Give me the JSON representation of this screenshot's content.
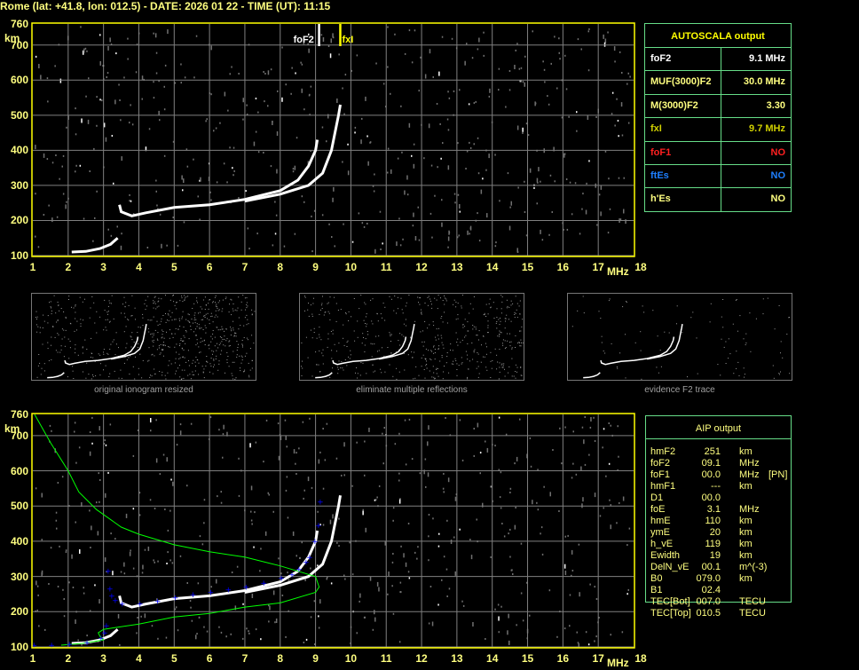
{
  "header": {
    "title": "Rome (lat: +41.8, lon: 012.5) - DATE: 2026 01 22 - TIME (UT): 11:15"
  },
  "colors": {
    "frame": "#ffff00",
    "grid": "#808080",
    "trace": "#ffffff",
    "profile": "#00ff00",
    "aip_points": "#0000ff",
    "table_border": "#66dd88",
    "fof1": "#ff2020",
    "ftes": "#1e7fff",
    "fxi": "#d0d000"
  },
  "autoscala": {
    "title": "AUTOSCALA output",
    "rows": [
      {
        "label": "foF2",
        "value": "9.1 MHz",
        "color": "#ffffff"
      },
      {
        "label": "MUF(3000)F2",
        "value": "30.0 MHz",
        "color": "#ffff80"
      },
      {
        "label": "M(3000)F2",
        "value": "3.30",
        "color": "#ffff80"
      },
      {
        "label": "fxI",
        "value": "9.7 MHz",
        "color": "#d0d000"
      },
      {
        "label": "foF1",
        "value": "NO",
        "color": "#ff2020"
      },
      {
        "label": "ftEs",
        "value": "NO",
        "color": "#1e7fff"
      },
      {
        "label": "h'Es",
        "value": "NO",
        "color": "#ffff80"
      }
    ]
  },
  "aip": {
    "title": "AIP output",
    "rows": [
      {
        "name": "hmF2",
        "value": "251",
        "unit": "km",
        "extra": ""
      },
      {
        "name": "foF2",
        "value": "09.1",
        "unit": "MHz",
        "extra": ""
      },
      {
        "name": "foF1",
        "value": "00.0",
        "unit": "MHz",
        "extra": "[PN]"
      },
      {
        "name": "hmF1",
        "value": "---",
        "unit": "km",
        "extra": ""
      },
      {
        "name": "D1",
        "value": "00.0",
        "unit": "",
        "extra": ""
      },
      {
        "name": "foE",
        "value": "3.1",
        "unit": "MHz",
        "extra": ""
      },
      {
        "name": "hmE",
        "value": "110",
        "unit": "km",
        "extra": ""
      },
      {
        "name": "ymE",
        "value": "20",
        "unit": "km",
        "extra": ""
      },
      {
        "name": "h_vE",
        "value": "119",
        "unit": "km",
        "extra": ""
      },
      {
        "name": "Ewidth",
        "value": "19",
        "unit": "km",
        "extra": ""
      },
      {
        "name": "DelN_vE",
        "value": "00.1",
        "unit": "m^(-3)",
        "extra": ""
      },
      {
        "name": "B0",
        "value": "079.0",
        "unit": "km",
        "extra": ""
      },
      {
        "name": "B1",
        "value": "02.4",
        "unit": "",
        "extra": ""
      },
      {
        "name": "TEC[Bot]",
        "value": "007.0",
        "unit": "TECU",
        "extra": ""
      },
      {
        "name": "TEC[Top]",
        "value": "010.5",
        "unit": "TECU",
        "extra": ""
      }
    ]
  },
  "thumbnails": [
    {
      "caption": "original ionogram resized"
    },
    {
      "caption": "eliminate multiple reflections"
    },
    {
      "caption": "evidence F2 trace"
    }
  ],
  "markers": {
    "fof2_label": "foF2",
    "fof2_freq": 9.1,
    "fxi_label": "fxI",
    "fxi_freq": 9.7
  },
  "chart_data": [
    {
      "type": "scatter",
      "xlabel": "MHz",
      "ylabel": "km",
      "xlim": [
        1,
        18
      ],
      "ylim": [
        100,
        760
      ],
      "xticks": [
        "1",
        "2",
        "3",
        "4",
        "5",
        "6",
        "7",
        "8",
        "9",
        "10",
        "11",
        "12",
        "13",
        "14",
        "15",
        "16",
        "17",
        "18"
      ],
      "yticks": [
        "760",
        "700",
        "600",
        "500",
        "400",
        "300",
        "200",
        "100"
      ],
      "grid": true,
      "series": [
        {
          "kind": "trace",
          "points": [
            [
              2.1,
              110
            ],
            [
              2.5,
              112
            ],
            [
              2.9,
              120
            ],
            [
              3.2,
              132
            ],
            [
              3.4,
              150
            ]
          ]
        },
        {
          "kind": "trace",
          "points": [
            [
              3.45,
              245
            ],
            [
              3.5,
              225
            ],
            [
              3.8,
              213
            ],
            [
              4.2,
              222
            ],
            [
              5,
              237
            ],
            [
              6,
              245
            ],
            [
              7,
              260
            ],
            [
              8,
              285
            ],
            [
              8.5,
              315
            ],
            [
              8.8,
              355
            ],
            [
              9.0,
              400
            ],
            [
              9.05,
              430
            ]
          ]
        },
        {
          "kind": "trace",
          "points": [
            [
              7,
              255
            ],
            [
              8,
              275
            ],
            [
              8.8,
              300
            ],
            [
              9.2,
              335
            ],
            [
              9.45,
              400
            ],
            [
              9.55,
              450
            ],
            [
              9.65,
              500
            ],
            [
              9.7,
              530
            ]
          ]
        }
      ]
    },
    {
      "type": "scatter",
      "xlabel": "MHz",
      "ylabel": "km",
      "xlim": [
        1,
        18
      ],
      "ylim": [
        100,
        760
      ],
      "xticks": [
        "1",
        "2",
        "3",
        "4",
        "5",
        "6",
        "7",
        "8",
        "9",
        "10",
        "11",
        "12",
        "13",
        "14",
        "15",
        "16",
        "17",
        "18"
      ],
      "yticks": [
        "760",
        "700",
        "600",
        "500",
        "400",
        "300",
        "200",
        "100"
      ],
      "grid": true,
      "series": [
        {
          "kind": "trace",
          "points": [
            [
              2.1,
              110
            ],
            [
              2.5,
              112
            ],
            [
              2.9,
              120
            ],
            [
              3.2,
              132
            ],
            [
              3.4,
              150
            ]
          ]
        },
        {
          "kind": "trace",
          "points": [
            [
              3.45,
              245
            ],
            [
              3.5,
              225
            ],
            [
              3.8,
              213
            ],
            [
              4.2,
              222
            ],
            [
              5,
              237
            ],
            [
              6,
              245
            ],
            [
              7,
              260
            ],
            [
              8,
              285
            ],
            [
              8.5,
              315
            ],
            [
              8.8,
              355
            ],
            [
              9.0,
              400
            ],
            [
              9.05,
              430
            ]
          ]
        },
        {
          "kind": "trace",
          "points": [
            [
              7,
              255
            ],
            [
              8,
              275
            ],
            [
              8.8,
              300
            ],
            [
              9.2,
              335
            ],
            [
              9.45,
              400
            ],
            [
              9.55,
              450
            ],
            [
              9.65,
              500
            ],
            [
              9.7,
              530
            ]
          ]
        },
        {
          "kind": "profile",
          "points": [
            [
              1.05,
              760
            ],
            [
              1.5,
              680
            ],
            [
              2,
              600
            ],
            [
              2.3,
              540
            ],
            [
              2.8,
              490
            ],
            [
              3.5,
              440
            ],
            [
              4,
              420
            ],
            [
              5,
              390
            ],
            [
              6,
              370
            ],
            [
              7,
              355
            ],
            [
              8,
              330
            ],
            [
              8.5,
              315
            ],
            [
              9,
              300
            ],
            [
              9.1,
              270
            ],
            [
              9,
              255
            ],
            [
              8,
              225
            ],
            [
              7,
              213
            ],
            [
              6,
              195
            ],
            [
              5,
              185
            ],
            [
              4,
              165
            ],
            [
              3,
              150
            ],
            [
              2.85,
              140
            ],
            [
              2.9,
              130
            ],
            [
              3,
              120
            ],
            [
              2.4,
              110
            ],
            [
              1.8,
              105
            ]
          ]
        },
        {
          "kind": "aip",
          "points": [
            [
              1,
              105
            ],
            [
              1.5,
              105
            ],
            [
              2,
              107
            ],
            [
              2.5,
              112
            ],
            [
              2.9,
              125
            ],
            [
              3.0,
              140
            ],
            [
              3.05,
              160
            ],
            [
              3.1,
              315
            ],
            [
              3.15,
              265
            ],
            [
              3.2,
              245
            ],
            [
              3.3,
              232
            ],
            [
              3.5,
              222
            ],
            [
              4,
              222
            ],
            [
              4.5,
              230
            ],
            [
              5,
              240
            ],
            [
              5.5,
              248
            ],
            [
              6,
              255
            ],
            [
              6.5,
              263
            ],
            [
              7,
              270
            ],
            [
              7.5,
              282
            ],
            [
              8,
              295
            ],
            [
              8.3,
              305
            ],
            [
              8.5,
              320
            ],
            [
              8.7,
              340
            ],
            [
              8.8,
              355
            ],
            [
              8.95,
              400
            ],
            [
              9.05,
              445
            ],
            [
              9.1,
              512
            ]
          ]
        }
      ]
    }
  ]
}
